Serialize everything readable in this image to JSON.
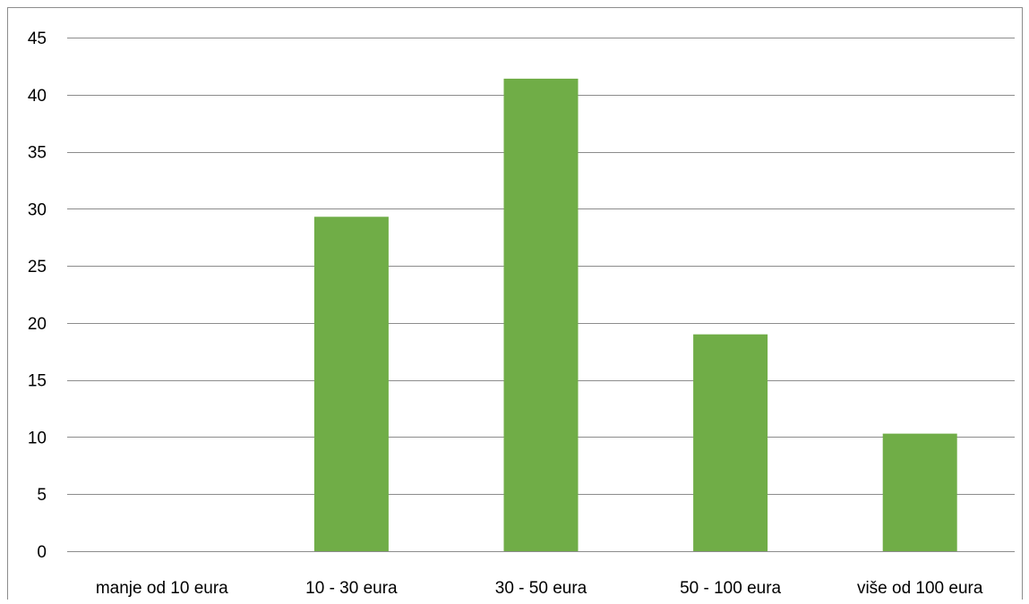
{
  "chart_data": {
    "type": "bar",
    "categories": [
      "manje od 10 eura",
      "10 - 30 eura",
      "30 - 50 eura",
      "50 - 100 eura",
      "više od 100 eura"
    ],
    "values": [
      0,
      29.3,
      41.4,
      19.0,
      10.3
    ],
    "title": "",
    "xlabel": "",
    "ylabel": "",
    "ylim": [
      0,
      45
    ],
    "yticks": [
      0,
      5,
      10,
      15,
      20,
      25,
      30,
      35,
      40,
      45
    ],
    "grid": true,
    "legend": "none",
    "bar_color": "#70ad47",
    "grid_color": "#8c8c8c"
  }
}
